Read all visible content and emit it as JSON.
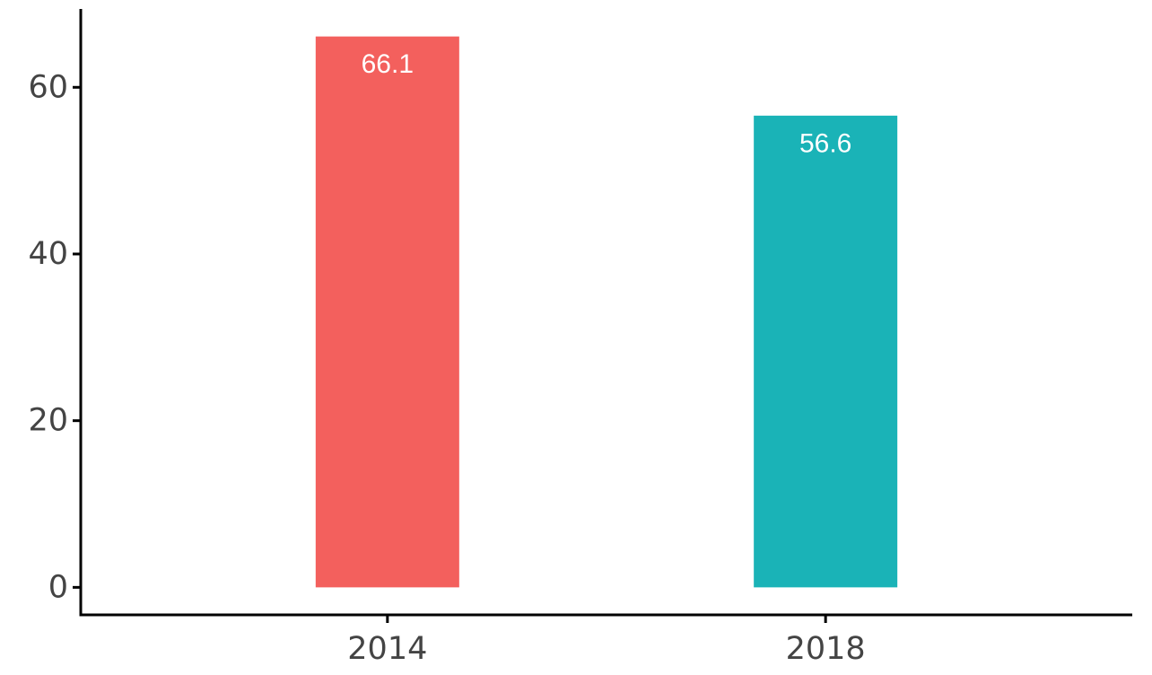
{
  "chart_data": {
    "type": "bar",
    "title": "",
    "xlabel": "",
    "ylabel": "",
    "categories": [
      "2014",
      "2018"
    ],
    "values": [
      66.1,
      56.6
    ],
    "data_labels": [
      "66.1",
      "56.6"
    ],
    "bar_colors": [
      "#F3605D",
      "#1AB3B7"
    ],
    "ylim": [
      -3.3,
      69.4
    ],
    "yticks": [
      0,
      20,
      40,
      60
    ],
    "ytick_labels": [
      "0",
      "20",
      "40",
      "60"
    ],
    "grid": false,
    "legend": "none"
  }
}
